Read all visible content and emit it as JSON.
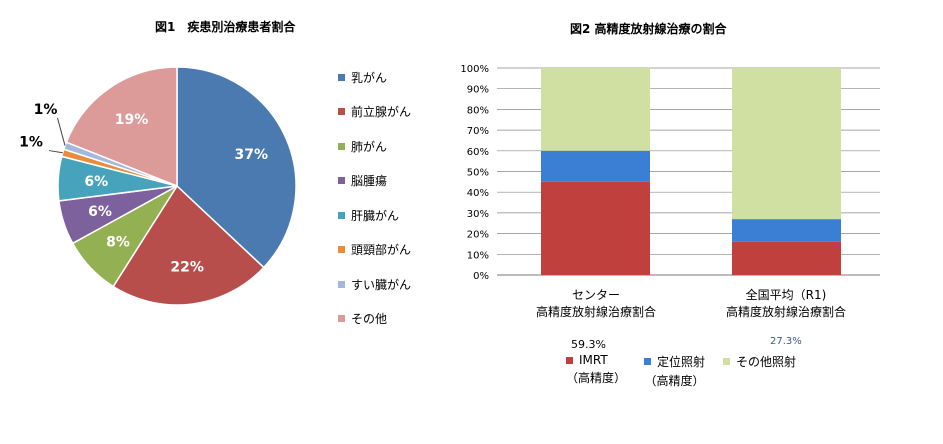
{
  "chart_data": [
    {
      "type": "pie",
      "title": "図1　疾患別治療患者割合",
      "slices": [
        {
          "label": "乳がん",
          "value": 37,
          "display": "37%",
          "color": "#4a7ab0"
        },
        {
          "label": "前立腺がん",
          "value": 22,
          "display": "22%",
          "color": "#b84e4c"
        },
        {
          "label": "肺がん",
          "value": 8,
          "display": "8%",
          "color": "#93b053"
        },
        {
          "label": "脳腫瘍",
          "value": 6,
          "display": "6%",
          "color": "#7c619d"
        },
        {
          "label": "肝臓がん",
          "value": 6,
          "display": "6%",
          "color": "#47a3bb"
        },
        {
          "label": "頭頸部がん",
          "value": 1,
          "display": "1%",
          "color": "#ea8d3b"
        },
        {
          "label": "すい臓がん",
          "value": 1,
          "display": "1%",
          "color": "#a3b8dd"
        },
        {
          "label": "その他",
          "value": 19,
          "display": "19%",
          "color": "#dc9a99"
        }
      ],
      "legend": "right"
    },
    {
      "type": "bar",
      "stacked": true,
      "title": "図2 高精度放射線治療の割合",
      "categories": [
        "センター\n高精度放射線治療割合",
        "全国平均（R1)\n高精度放射線治療割合"
      ],
      "category_lines": [
        [
          "センター",
          "高精度放射線治療割合"
        ],
        [
          "全国平均（R1)",
          "高精度放射線治療割合"
        ]
      ],
      "series": [
        {
          "name": "IMRT（高精度）",
          "name_lines": [
            "IMRT",
            "（高精度）"
          ],
          "values": [
            45,
            16
          ],
          "color": "#c0403d"
        },
        {
          "name": "定位照射（高精度）",
          "name_lines": [
            "定位照射",
            "（高精度）"
          ],
          "values": [
            15,
            11
          ],
          "color": "#3b7fd4"
        },
        {
          "name": "その他照射",
          "name_lines": [
            "その他照射",
            ""
          ],
          "values": [
            40,
            73
          ],
          "color": "#d0e0a3"
        }
      ],
      "yticks": [
        "0%",
        "10%",
        "20%",
        "30%",
        "40%",
        "50%",
        "60%",
        "70%",
        "80%",
        "90%",
        "100%"
      ],
      "ylim": [
        0,
        100
      ],
      "grid": true,
      "annotations": [
        "59.3%",
        "27.3%"
      ],
      "legend": "bottom"
    }
  ]
}
